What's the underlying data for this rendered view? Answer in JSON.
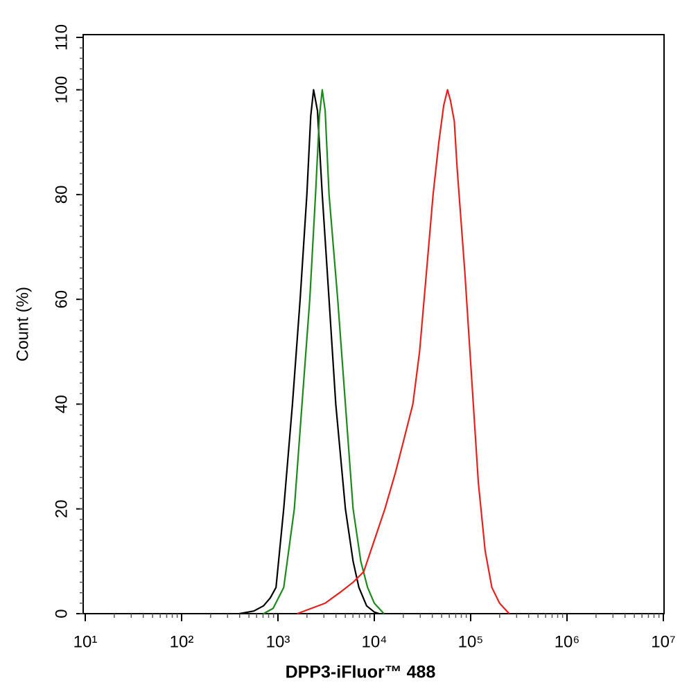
{
  "chart_data": {
    "type": "line",
    "xlabel": "DPP3-iFluor™ 488",
    "ylabel": "Count  (%)",
    "xscale": "log",
    "xlim": [
      10,
      10000000
    ],
    "ylim": [
      0,
      110
    ],
    "xticks": [
      {
        "value": 10,
        "label": "10¹"
      },
      {
        "value": 100,
        "label": "10²"
      },
      {
        "value": 1000,
        "label": "10³"
      },
      {
        "value": 10000,
        "label": "10⁴"
      },
      {
        "value": 100000,
        "label": "10⁵"
      },
      {
        "value": 1000000,
        "label": "10⁶"
      },
      {
        "value": 10000000,
        "label": "10⁷"
      }
    ],
    "yticks": [
      0,
      20,
      40,
      60,
      80,
      100,
      110
    ],
    "series": [
      {
        "color": "#000000",
        "x": [
          398,
          562,
          708,
          832,
          955,
          1148,
          1413,
          1698,
          1995,
          2188,
          2344,
          2570,
          2884,
          3388,
          3981,
          5012,
          6026,
          6918,
          8318,
          10000,
          11220
        ],
        "values": [
          0,
          0.5,
          1.5,
          3,
          5,
          20,
          40,
          60,
          80,
          95,
          100,
          96,
          80,
          60,
          40,
          20,
          10,
          5,
          1.5,
          0.3,
          0
        ]
      },
      {
        "color": "#1a8a1a",
        "x": [
          708,
          891,
          1148,
          1479,
          1778,
          2138,
          2455,
          2692,
          2884,
          3090,
          3388,
          4169,
          5012,
          6026,
          7244,
          8511,
          10000,
          12589
        ],
        "values": [
          0,
          1,
          5,
          20,
          40,
          60,
          80,
          95,
          100,
          96,
          80,
          60,
          40,
          20,
          10,
          5,
          2,
          0
        ]
      },
      {
        "color": "#e8201c",
        "x": [
          1585,
          3090,
          4365,
          5129,
          6026,
          7762,
          10000,
          12882,
          16596,
          19498,
          25119,
          29512,
          34674,
          40738,
          46774,
          52481,
          57544,
          61660,
          67608,
          72444,
          87096,
          102329,
          120226,
          141254,
          165959,
          199526,
          251189
        ],
        "values": [
          0,
          2,
          4,
          5,
          6,
          8,
          14,
          20,
          27,
          32,
          40,
          50,
          65,
          80,
          90,
          97,
          100,
          98,
          94,
          85,
          65,
          45,
          25,
          12,
          5,
          2,
          0
        ]
      }
    ]
  }
}
